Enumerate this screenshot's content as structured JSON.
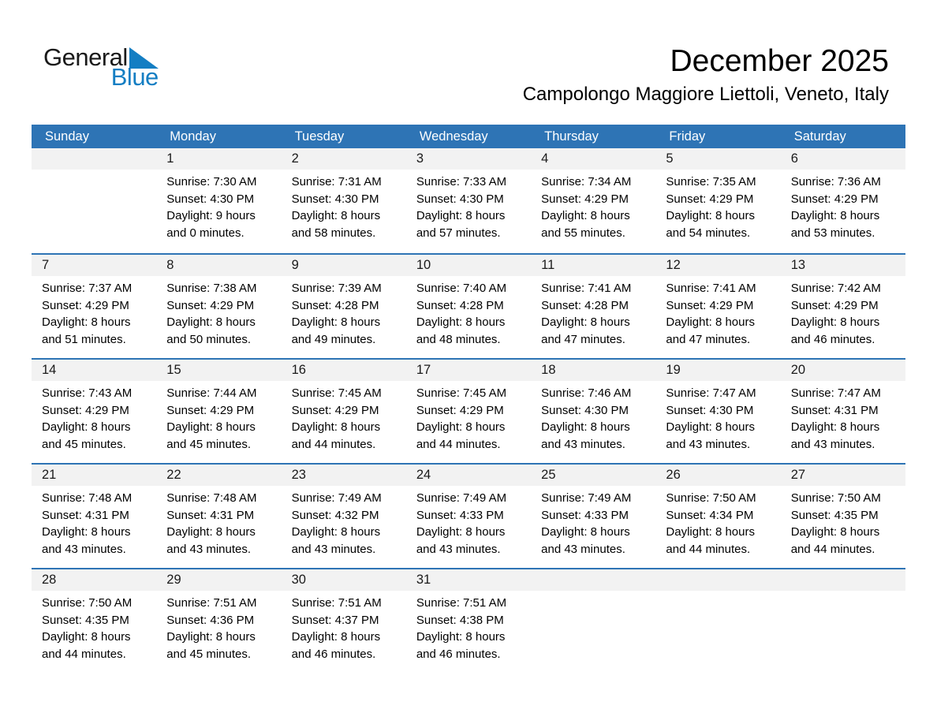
{
  "logo": {
    "word1": "General",
    "word2": "Blue"
  },
  "title": "December 2025",
  "subtitle": "Campolongo Maggiore Liettoli, Veneto, Italy",
  "weekdays": [
    "Sunday",
    "Monday",
    "Tuesday",
    "Wednesday",
    "Thursday",
    "Friday",
    "Saturday"
  ],
  "colors": {
    "header_blue": "#2E74B5",
    "week_line_blue": "#2E74B5",
    "day_band_gray": "#F2F2F2",
    "logo_blue": "#147EC3",
    "logo_dark": "#1A1A1A"
  },
  "weeks": [
    [
      null,
      {
        "day": "1",
        "lines": [
          "Sunrise: 7:30 AM",
          "Sunset: 4:30 PM",
          "Daylight: 9 hours",
          "and 0 minutes."
        ]
      },
      {
        "day": "2",
        "lines": [
          "Sunrise: 7:31 AM",
          "Sunset: 4:30 PM",
          "Daylight: 8 hours",
          "and 58 minutes."
        ]
      },
      {
        "day": "3",
        "lines": [
          "Sunrise: 7:33 AM",
          "Sunset: 4:30 PM",
          "Daylight: 8 hours",
          "and 57 minutes."
        ]
      },
      {
        "day": "4",
        "lines": [
          "Sunrise: 7:34 AM",
          "Sunset: 4:29 PM",
          "Daylight: 8 hours",
          "and 55 minutes."
        ]
      },
      {
        "day": "5",
        "lines": [
          "Sunrise: 7:35 AM",
          "Sunset: 4:29 PM",
          "Daylight: 8 hours",
          "and 54 minutes."
        ]
      },
      {
        "day": "6",
        "lines": [
          "Sunrise: 7:36 AM",
          "Sunset: 4:29 PM",
          "Daylight: 8 hours",
          "and 53 minutes."
        ]
      }
    ],
    [
      {
        "day": "7",
        "lines": [
          "Sunrise: 7:37 AM",
          "Sunset: 4:29 PM",
          "Daylight: 8 hours",
          "and 51 minutes."
        ]
      },
      {
        "day": "8",
        "lines": [
          "Sunrise: 7:38 AM",
          "Sunset: 4:29 PM",
          "Daylight: 8 hours",
          "and 50 minutes."
        ]
      },
      {
        "day": "9",
        "lines": [
          "Sunrise: 7:39 AM",
          "Sunset: 4:28 PM",
          "Daylight: 8 hours",
          "and 49 minutes."
        ]
      },
      {
        "day": "10",
        "lines": [
          "Sunrise: 7:40 AM",
          "Sunset: 4:28 PM",
          "Daylight: 8 hours",
          "and 48 minutes."
        ]
      },
      {
        "day": "11",
        "lines": [
          "Sunrise: 7:41 AM",
          "Sunset: 4:28 PM",
          "Daylight: 8 hours",
          "and 47 minutes."
        ]
      },
      {
        "day": "12",
        "lines": [
          "Sunrise: 7:41 AM",
          "Sunset: 4:29 PM",
          "Daylight: 8 hours",
          "and 47 minutes."
        ]
      },
      {
        "day": "13",
        "lines": [
          "Sunrise: 7:42 AM",
          "Sunset: 4:29 PM",
          "Daylight: 8 hours",
          "and 46 minutes."
        ]
      }
    ],
    [
      {
        "day": "14",
        "lines": [
          "Sunrise: 7:43 AM",
          "Sunset: 4:29 PM",
          "Daylight: 8 hours",
          "and 45 minutes."
        ]
      },
      {
        "day": "15",
        "lines": [
          "Sunrise: 7:44 AM",
          "Sunset: 4:29 PM",
          "Daylight: 8 hours",
          "and 45 minutes."
        ]
      },
      {
        "day": "16",
        "lines": [
          "Sunrise: 7:45 AM",
          "Sunset: 4:29 PM",
          "Daylight: 8 hours",
          "and 44 minutes."
        ]
      },
      {
        "day": "17",
        "lines": [
          "Sunrise: 7:45 AM",
          "Sunset: 4:29 PM",
          "Daylight: 8 hours",
          "and 44 minutes."
        ]
      },
      {
        "day": "18",
        "lines": [
          "Sunrise: 7:46 AM",
          "Sunset: 4:30 PM",
          "Daylight: 8 hours",
          "and 43 minutes."
        ]
      },
      {
        "day": "19",
        "lines": [
          "Sunrise: 7:47 AM",
          "Sunset: 4:30 PM",
          "Daylight: 8 hours",
          "and 43 minutes."
        ]
      },
      {
        "day": "20",
        "lines": [
          "Sunrise: 7:47 AM",
          "Sunset: 4:31 PM",
          "Daylight: 8 hours",
          "and 43 minutes."
        ]
      }
    ],
    [
      {
        "day": "21",
        "lines": [
          "Sunrise: 7:48 AM",
          "Sunset: 4:31 PM",
          "Daylight: 8 hours",
          "and 43 minutes."
        ]
      },
      {
        "day": "22",
        "lines": [
          "Sunrise: 7:48 AM",
          "Sunset: 4:31 PM",
          "Daylight: 8 hours",
          "and 43 minutes."
        ]
      },
      {
        "day": "23",
        "lines": [
          "Sunrise: 7:49 AM",
          "Sunset: 4:32 PM",
          "Daylight: 8 hours",
          "and 43 minutes."
        ]
      },
      {
        "day": "24",
        "lines": [
          "Sunrise: 7:49 AM",
          "Sunset: 4:33 PM",
          "Daylight: 8 hours",
          "and 43 minutes."
        ]
      },
      {
        "day": "25",
        "lines": [
          "Sunrise: 7:49 AM",
          "Sunset: 4:33 PM",
          "Daylight: 8 hours",
          "and 43 minutes."
        ]
      },
      {
        "day": "26",
        "lines": [
          "Sunrise: 7:50 AM",
          "Sunset: 4:34 PM",
          "Daylight: 8 hours",
          "and 44 minutes."
        ]
      },
      {
        "day": "27",
        "lines": [
          "Sunrise: 7:50 AM",
          "Sunset: 4:35 PM",
          "Daylight: 8 hours",
          "and 44 minutes."
        ]
      }
    ],
    [
      {
        "day": "28",
        "lines": [
          "Sunrise: 7:50 AM",
          "Sunset: 4:35 PM",
          "Daylight: 8 hours",
          "and 44 minutes."
        ]
      },
      {
        "day": "29",
        "lines": [
          "Sunrise: 7:51 AM",
          "Sunset: 4:36 PM",
          "Daylight: 8 hours",
          "and 45 minutes."
        ]
      },
      {
        "day": "30",
        "lines": [
          "Sunrise: 7:51 AM",
          "Sunset: 4:37 PM",
          "Daylight: 8 hours",
          "and 46 minutes."
        ]
      },
      {
        "day": "31",
        "lines": [
          "Sunrise: 7:51 AM",
          "Sunset: 4:38 PM",
          "Daylight: 8 hours",
          "and 46 minutes."
        ]
      },
      null,
      null,
      null
    ]
  ]
}
